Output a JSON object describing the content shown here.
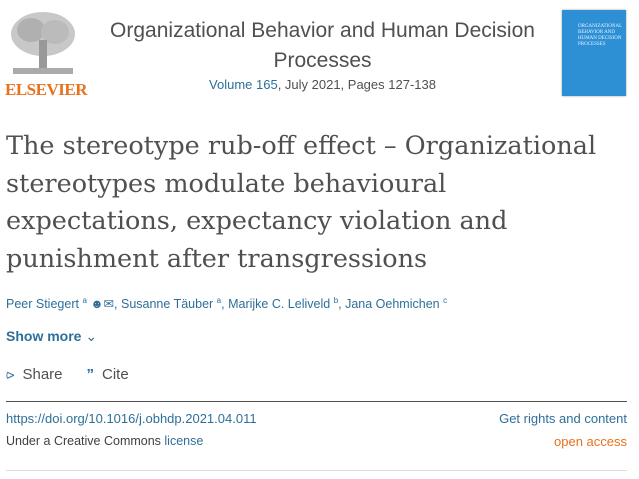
{
  "publisher": {
    "name": "ELSEVIER",
    "brand_color": "#e9711c"
  },
  "journal": {
    "title": "Organizational Behavior and Human Decision Processes",
    "volume_link": "Volume 165",
    "issue_info": ", July 2021, Pages 127-138",
    "cover_text": "ORGANIZATIONAL BEHAVIOR AND HUMAN DECISION PROCESSES"
  },
  "article": {
    "title": "The stereotype rub-off effect – Organizational stereotypes modulate behavioural expectations, expectancy violation and punishment after transgressions"
  },
  "authors": [
    {
      "name": "Peer Stiegert",
      "sup": "a"
    },
    {
      "name": "Susanne Täuber",
      "sup": "a"
    },
    {
      "name": "Marijke C. Leliveld",
      "sup": "b"
    },
    {
      "name": "Jana Oehmichen",
      "sup": "c"
    }
  ],
  "show_more": "Show more",
  "actions": {
    "share": "Share",
    "cite": "Cite"
  },
  "doi": "https://doi.org/10.1016/j.obhdp.2021.04.011",
  "rights": "Get rights and content",
  "license": {
    "prefix": "Under a Creative Commons ",
    "link": "license"
  },
  "open_access": "open access",
  "colors": {
    "link": "#2e6f9a",
    "text": "#505050"
  }
}
